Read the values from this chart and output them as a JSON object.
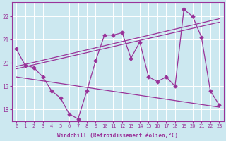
{
  "xlabel": "Windchill (Refroidissement éolien,°C)",
  "background_color": "#cce8f0",
  "line_color": "#993399",
  "xlim": [
    -0.5,
    23.5
  ],
  "ylim": [
    17.5,
    22.6
  ],
  "yticks": [
    18,
    19,
    20,
    21,
    22
  ],
  "xticks": [
    0,
    1,
    2,
    3,
    4,
    5,
    6,
    7,
    8,
    9,
    10,
    11,
    12,
    13,
    14,
    15,
    16,
    17,
    18,
    19,
    20,
    21,
    22,
    23
  ],
  "data_line_x": [
    0,
    1,
    2,
    3,
    4,
    5,
    6,
    7,
    8,
    9,
    10,
    11,
    12,
    13,
    14,
    15,
    16,
    17,
    18,
    19,
    20,
    21,
    22,
    23
  ],
  "data_line_y": [
    20.6,
    19.9,
    19.8,
    19.4,
    18.8,
    18.5,
    17.8,
    17.6,
    18.8,
    20.1,
    21.2,
    21.2,
    21.3,
    20.2,
    20.9,
    19.4,
    19.2,
    19.4,
    19.0,
    22.3,
    22.0,
    21.1,
    18.8,
    18.2
  ],
  "trend1_x": [
    0,
    23
  ],
  "trend1_y": [
    19.85,
    21.9
  ],
  "trend2_x": [
    0,
    23
  ],
  "trend2_y": [
    19.75,
    21.75
  ],
  "trend3_x": [
    0,
    23
  ],
  "trend3_y": [
    19.4,
    18.1
  ]
}
